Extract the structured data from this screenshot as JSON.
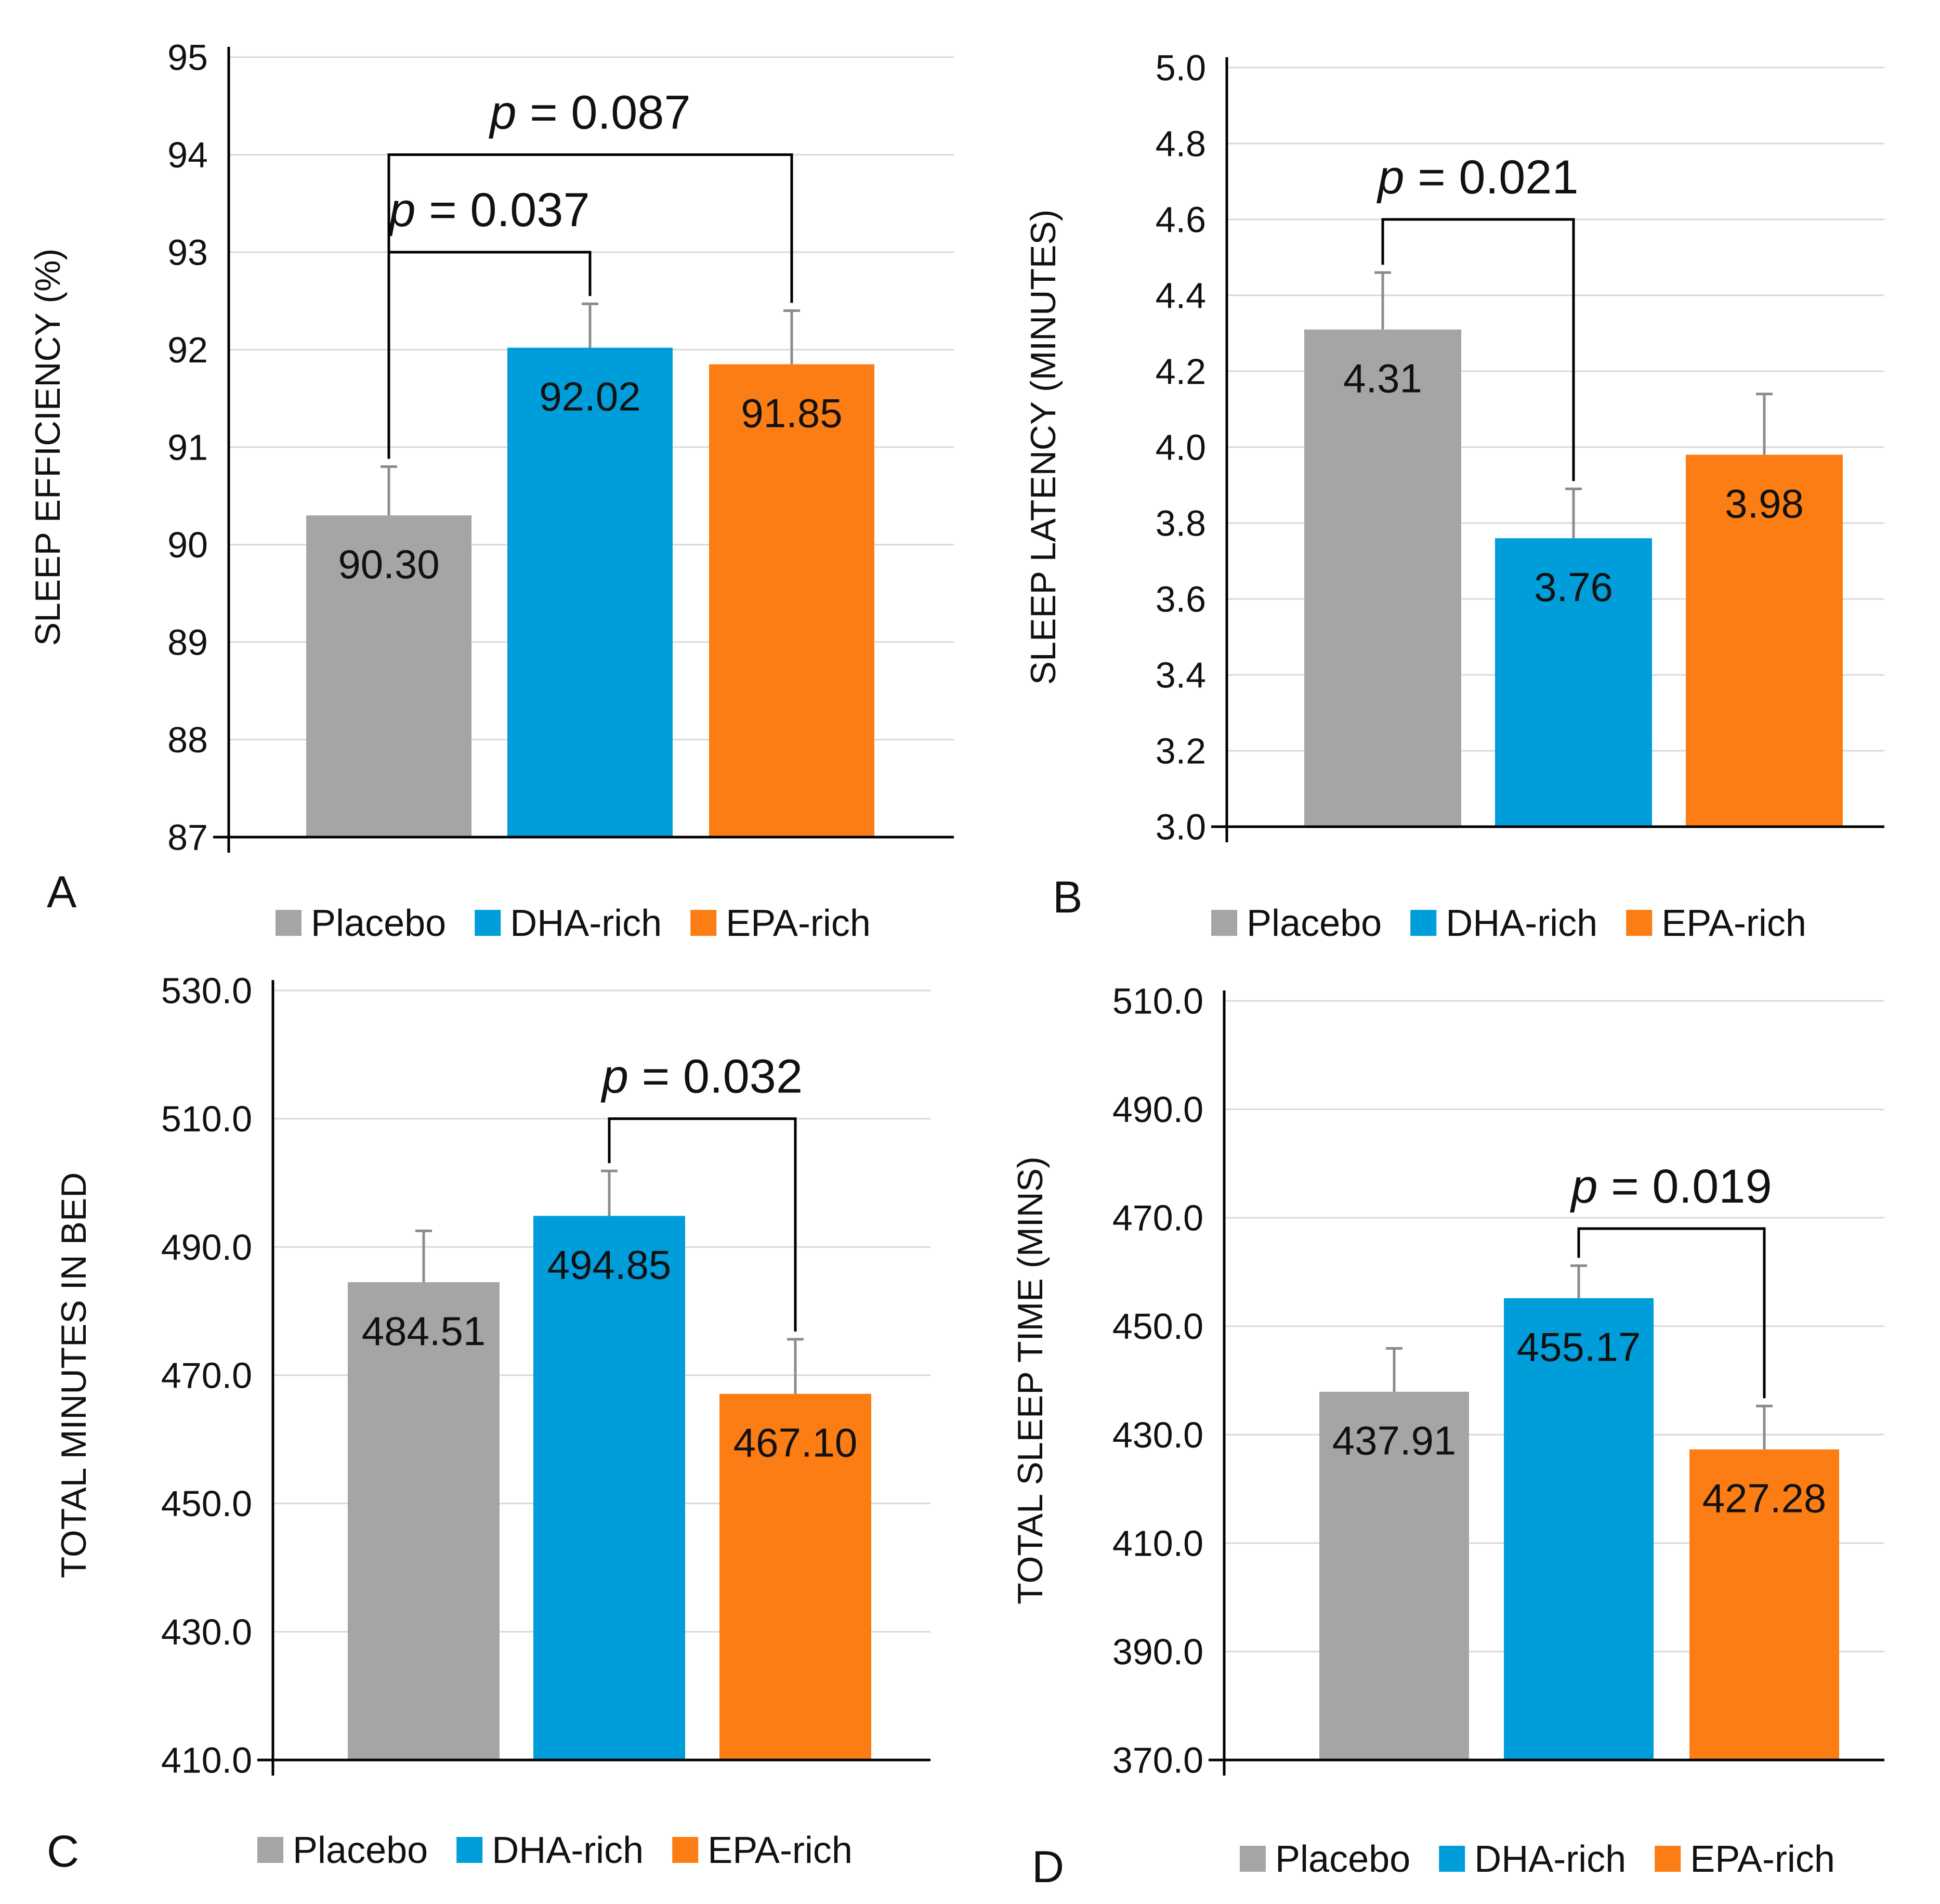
{
  "figure": {
    "legend_items": [
      "Placebo",
      "DHA-rich",
      "EPA-rich"
    ]
  },
  "colors": {
    "Placebo": "#a5a5a5",
    "DHA-rich": "#009ddb",
    "EPA-rich": "#fb7d14",
    "gridline": "#d9d9d9",
    "axis": "#000000",
    "error_bar": "#8c8c8c"
  },
  "chart_data": [
    {
      "panel": "A",
      "type": "bar",
      "ylabel": "SLEEP EFFICIENCY (%)",
      "ylim": [
        87,
        95
      ],
      "yticks": [
        "87",
        "88",
        "89",
        "90",
        "91",
        "92",
        "93",
        "94",
        "95"
      ],
      "categories": [
        "Placebo",
        "DHA-rich",
        "EPA-rich"
      ],
      "values": [
        90.3,
        92.02,
        91.85
      ],
      "value_labels": [
        "90.30",
        "92.02",
        "91.85"
      ],
      "error": [
        0.5,
        0.45,
        0.55
      ],
      "legend": [
        "Placebo",
        "DHA-rich",
        "EPA-rich"
      ],
      "comparisons": [
        {
          "from": 0,
          "to": 1,
          "p_label": "p",
          "p_value": "= 0.037",
          "bracket_y": 93.0
        },
        {
          "from": 0,
          "to": 2,
          "p_label": "p",
          "p_value": "= 0.087",
          "bracket_y": 94.0
        }
      ]
    },
    {
      "panel": "B",
      "type": "bar",
      "ylabel": "SLEEP LATENCY (MINUTES)",
      "ylim": [
        3.0,
        5.0
      ],
      "yticks": [
        "3.0",
        "3.2",
        "3.4",
        "3.6",
        "3.8",
        "4.0",
        "4.2",
        "4.4",
        "4.6",
        "4.8",
        "5.0"
      ],
      "categories": [
        "Placebo",
        "DHA-rich",
        "EPA-rich"
      ],
      "values": [
        4.31,
        3.76,
        3.98
      ],
      "value_labels": [
        "4.31",
        "3.76",
        "3.98"
      ],
      "error": [
        0.15,
        0.13,
        0.16
      ],
      "legend": [
        "Placebo",
        "DHA-rich",
        "EPA-rich"
      ],
      "comparisons": [
        {
          "from": 0,
          "to": 1,
          "p_label": "p",
          "p_value": "= 0.021",
          "bracket_y": 4.6
        }
      ]
    },
    {
      "panel": "C",
      "type": "bar",
      "ylabel": "TOTAL MINUTES IN BED",
      "ylim": [
        410,
        530
      ],
      "yticks": [
        "410.0",
        "430.0",
        "450.0",
        "470.0",
        "490.0",
        "510.0",
        "530.0"
      ],
      "categories": [
        "Placebo",
        "DHA-rich",
        "EPA-rich"
      ],
      "values": [
        484.51,
        494.85,
        467.1
      ],
      "value_labels": [
        "484.51",
        "494.85",
        "467.10"
      ],
      "error": [
        8,
        7,
        8.5
      ],
      "legend": [
        "Placebo",
        "DHA-rich",
        "EPA-rich"
      ],
      "comparisons": [
        {
          "from": 1,
          "to": 2,
          "p_label": "p",
          "p_value": "= 0.032",
          "bracket_y": 510
        }
      ]
    },
    {
      "panel": "D",
      "type": "bar",
      "ylabel": "TOTAL SLEEP TIME (MINS)",
      "ylim": [
        370,
        510
      ],
      "yticks": [
        "370.0",
        "390.0",
        "410.0",
        "430.0",
        "450.0",
        "470.0",
        "490.0",
        "510.0"
      ],
      "categories": [
        "Placebo",
        "DHA-rich",
        "EPA-rich"
      ],
      "values": [
        437.91,
        455.17,
        427.28
      ],
      "value_labels": [
        "437.91",
        "455.17",
        "427.28"
      ],
      "error": [
        8,
        6,
        8
      ],
      "legend": [
        "Placebo",
        "DHA-rich",
        "EPA-rich"
      ],
      "comparisons": [
        {
          "from": 1,
          "to": 2,
          "p_label": "p",
          "p_value": "= 0.019",
          "bracket_y": 468
        }
      ]
    }
  ]
}
